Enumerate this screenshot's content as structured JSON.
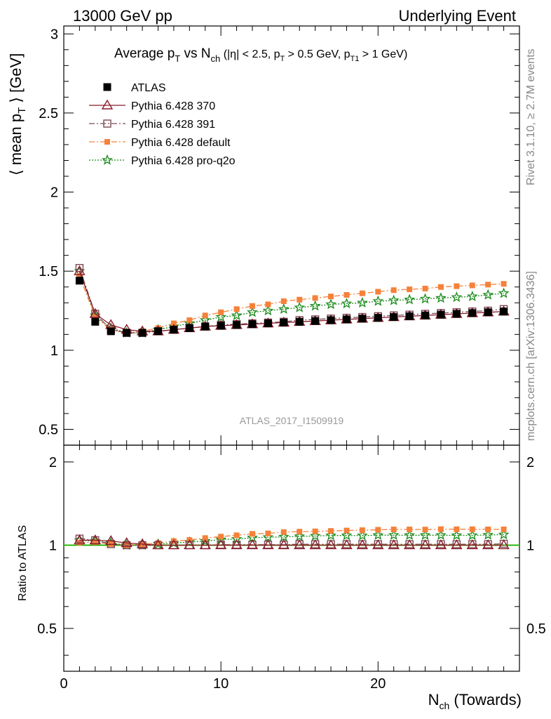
{
  "header": {
    "energy_label": "13000 GeV pp",
    "process_label": "Underlying Event"
  },
  "side": {
    "rivet_label": "Rivet 3.1.10, ≥ 2.7M events",
    "mcplots_label": "mcplots.cern.ch [arXiv:1306.3436]"
  },
  "colors": {
    "atlas": "#000000",
    "p370": "#8b1a2b",
    "p391": "#7a4a55",
    "default": "#f5813a",
    "proq2o": "#1a8a1a",
    "refline": "#00aa00"
  },
  "chart_data": [
    {
      "type": "line",
      "title": "Average pT vs Nch (|η| < 2.5, pT > 0.5 GeV, pT1 > 1 GeV)",
      "ylabel": "⟨ mean pT ⟩ [GeV]",
      "xlabel": "Nch (Towards)",
      "watermark": "ATLAS_2017_I1509919",
      "xlim": [
        0,
        29
      ],
      "ylim": [
        0.4,
        3.05
      ],
      "yticks": [
        0.5,
        1,
        1.5,
        2,
        2.5,
        3
      ],
      "legend": "top-left",
      "x": [
        1,
        2,
        3,
        4,
        5,
        6,
        7,
        8,
        9,
        10,
        11,
        12,
        13,
        14,
        15,
        16,
        17,
        18,
        19,
        20,
        21,
        22,
        23,
        24,
        25,
        26,
        27,
        28
      ],
      "series": [
        {
          "name": "ATLAS",
          "key": "atlas",
          "marker": "square-filled",
          "line": "none",
          "values": [
            1.44,
            1.18,
            1.12,
            1.11,
            1.11,
            1.12,
            1.13,
            1.14,
            1.15,
            1.155,
            1.16,
            1.165,
            1.17,
            1.175,
            1.18,
            1.185,
            1.19,
            1.195,
            1.2,
            1.205,
            1.21,
            1.215,
            1.22,
            1.225,
            1.23,
            1.235,
            1.24,
            1.245
          ]
        },
        {
          "name": "Pythia 6.428 370",
          "key": "p370",
          "marker": "triangle-open",
          "line": "solid",
          "values": [
            1.5,
            1.23,
            1.16,
            1.13,
            1.12,
            1.12,
            1.13,
            1.14,
            1.15,
            1.155,
            1.16,
            1.165,
            1.17,
            1.175,
            1.18,
            1.185,
            1.19,
            1.195,
            1.2,
            1.205,
            1.21,
            1.215,
            1.22,
            1.225,
            1.23,
            1.235,
            1.24,
            1.245
          ]
        },
        {
          "name": "Pythia 6.428 391",
          "key": "p391",
          "marker": "square-open",
          "line": "dashdot",
          "values": [
            1.52,
            1.23,
            1.13,
            1.11,
            1.11,
            1.12,
            1.13,
            1.14,
            1.15,
            1.16,
            1.165,
            1.17,
            1.175,
            1.18,
            1.19,
            1.195,
            1.2,
            1.205,
            1.21,
            1.215,
            1.22,
            1.225,
            1.23,
            1.235,
            1.24,
            1.245,
            1.25,
            1.26
          ]
        },
        {
          "name": "Pythia 6.428 default",
          "key": "default",
          "marker": "square-small",
          "line": "dashdot",
          "values": [
            1.47,
            1.21,
            1.13,
            1.11,
            1.12,
            1.14,
            1.17,
            1.19,
            1.22,
            1.24,
            1.26,
            1.28,
            1.29,
            1.31,
            1.32,
            1.33,
            1.34,
            1.35,
            1.36,
            1.37,
            1.38,
            1.385,
            1.39,
            1.4,
            1.405,
            1.41,
            1.415,
            1.42
          ]
        },
        {
          "name": "Pythia 6.428 pro-q2o",
          "key": "proq2o",
          "marker": "star",
          "line": "dotted",
          "values": [
            1.5,
            1.22,
            1.14,
            1.11,
            1.11,
            1.13,
            1.15,
            1.17,
            1.19,
            1.21,
            1.22,
            1.24,
            1.25,
            1.26,
            1.27,
            1.28,
            1.29,
            1.295,
            1.3,
            1.31,
            1.315,
            1.32,
            1.325,
            1.33,
            1.335,
            1.34,
            1.35,
            1.36
          ]
        }
      ]
    },
    {
      "type": "line",
      "ylabel": "Ratio to ATLAS",
      "xlabel": "Nch (Towards)",
      "xlim": [
        0,
        29
      ],
      "ylim": [
        0.35,
        2.3
      ],
      "yticks": [
        0.5,
        1,
        2
      ],
      "xticks": [
        0,
        10,
        20
      ],
      "series_note": "ratio of each series to ATLAS",
      "series": [
        {
          "name": "Pythia 6.428 370",
          "key": "p370",
          "values": [
            1.042,
            1.042,
            1.036,
            1.018,
            1.009,
            1.0,
            1.0,
            1.0,
            1.0,
            1.0,
            1.0,
            1.0,
            1.0,
            1.0,
            1.0,
            1.0,
            1.0,
            1.0,
            1.0,
            1.0,
            1.0,
            1.0,
            1.0,
            1.0,
            1.0,
            1.0,
            1.0,
            1.0
          ]
        },
        {
          "name": "Pythia 6.428 391",
          "key": "p391",
          "values": [
            1.056,
            1.042,
            1.009,
            1.0,
            1.0,
            1.0,
            1.0,
            1.0,
            1.0,
            1.004,
            1.004,
            1.004,
            1.004,
            1.004,
            1.008,
            1.008,
            1.008,
            1.008,
            1.008,
            1.008,
            1.008,
            1.008,
            1.008,
            1.008,
            1.008,
            1.008,
            1.008,
            1.012
          ]
        },
        {
          "name": "Pythia 6.428 default",
          "key": "default",
          "values": [
            1.021,
            1.025,
            1.009,
            1.0,
            1.009,
            1.018,
            1.035,
            1.044,
            1.061,
            1.074,
            1.086,
            1.099,
            1.103,
            1.115,
            1.119,
            1.122,
            1.126,
            1.13,
            1.133,
            1.137,
            1.14,
            1.14,
            1.139,
            1.143,
            1.142,
            1.142,
            1.141,
            1.141
          ]
        },
        {
          "name": "Pythia 6.428 pro-q2o",
          "key": "proq2o",
          "values": [
            1.042,
            1.034,
            1.018,
            1.0,
            1.0,
            1.009,
            1.018,
            1.026,
            1.035,
            1.048,
            1.052,
            1.064,
            1.068,
            1.072,
            1.076,
            1.08,
            1.084,
            1.084,
            1.083,
            1.087,
            1.087,
            1.086,
            1.086,
            1.086,
            1.085,
            1.085,
            1.089,
            1.092
          ]
        }
      ]
    }
  ]
}
